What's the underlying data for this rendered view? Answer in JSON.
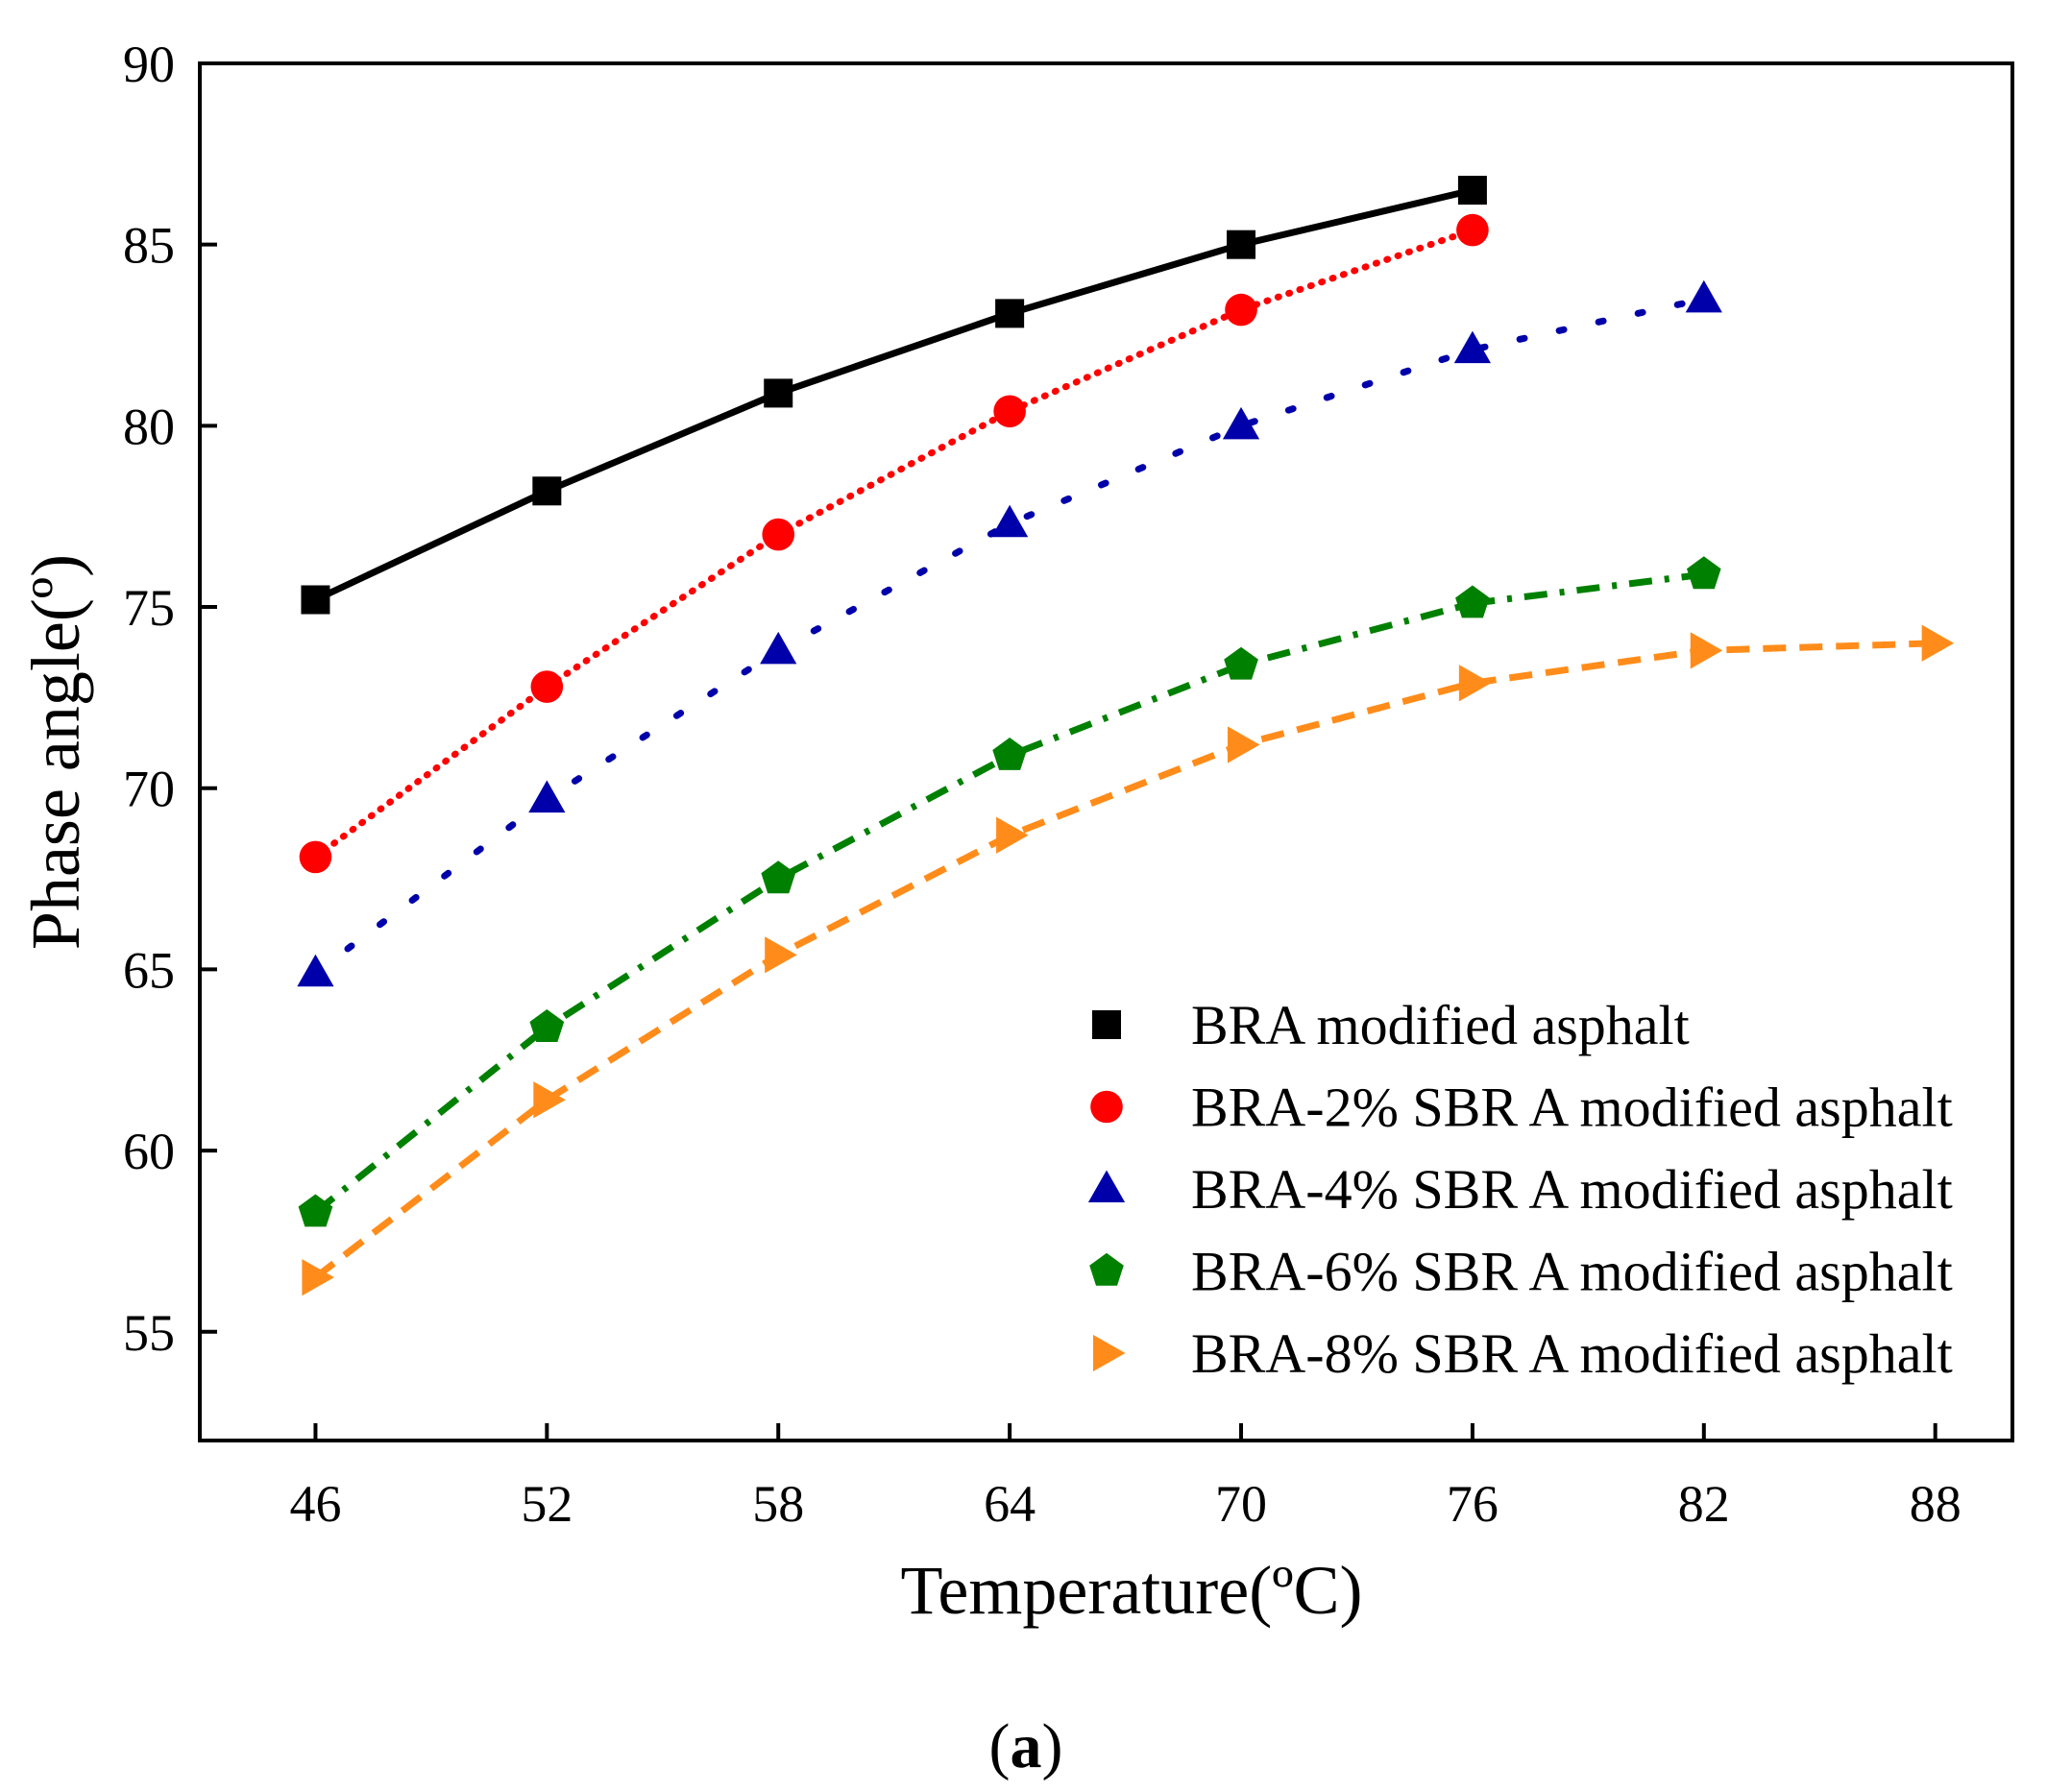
{
  "chart_data": {
    "type": "line",
    "title": "",
    "xlabel": "Temperature(ºC)",
    "ylabel": "Phase angle(º)",
    "xlim": [
      43,
      90
    ],
    "ylim": [
      52,
      90
    ],
    "xticks": [
      46,
      52,
      58,
      64,
      70,
      76,
      82,
      88
    ],
    "yticks": [
      55,
      60,
      65,
      70,
      75,
      80,
      85,
      90
    ],
    "grid": false,
    "legend_position": "bottom-right",
    "caption_bold": "a",
    "series": [
      {
        "name": "BRA modified asphalt",
        "color": "#000000",
        "marker": "square",
        "line_style": "solid",
        "x": [
          46,
          52,
          58,
          64,
          70,
          76
        ],
        "y": [
          75.2,
          78.2,
          80.9,
          83.1,
          85.0,
          86.5
        ]
      },
      {
        "name": "BRA-2% SBR A modified asphalt",
        "color": "#ff0000",
        "marker": "circle",
        "line_style": "dotted",
        "x": [
          46,
          52,
          58,
          64,
          70,
          76
        ],
        "y": [
          68.1,
          72.8,
          77.0,
          80.4,
          83.2,
          85.4
        ]
      },
      {
        "name": "BRA-4% SBR A modified asphalt",
        "color": "#0000aa",
        "marker": "triangle-up",
        "line_style": "short-dash",
        "x": [
          46,
          52,
          58,
          64,
          70,
          76,
          82
        ],
        "y": [
          64.9,
          69.7,
          73.8,
          77.3,
          80.0,
          82.1,
          83.5
        ]
      },
      {
        "name": "BRA-6% SBR A modified asphalt",
        "color": "#008000",
        "marker": "pentagon",
        "line_style": "dash-dot",
        "x": [
          46,
          52,
          58,
          64,
          70,
          76,
          82
        ],
        "y": [
          58.3,
          63.4,
          67.5,
          70.9,
          73.4,
          75.1,
          75.9
        ]
      },
      {
        "name": "BRA-8% SBR A modified asphalt",
        "color": "#ff8c1a",
        "marker": "triangle-right",
        "line_style": "dashed",
        "x": [
          46,
          52,
          58,
          64,
          70,
          76,
          82,
          88
        ],
        "y": [
          56.5,
          61.4,
          65.4,
          68.7,
          71.2,
          72.9,
          73.8,
          74.0
        ]
      }
    ]
  }
}
